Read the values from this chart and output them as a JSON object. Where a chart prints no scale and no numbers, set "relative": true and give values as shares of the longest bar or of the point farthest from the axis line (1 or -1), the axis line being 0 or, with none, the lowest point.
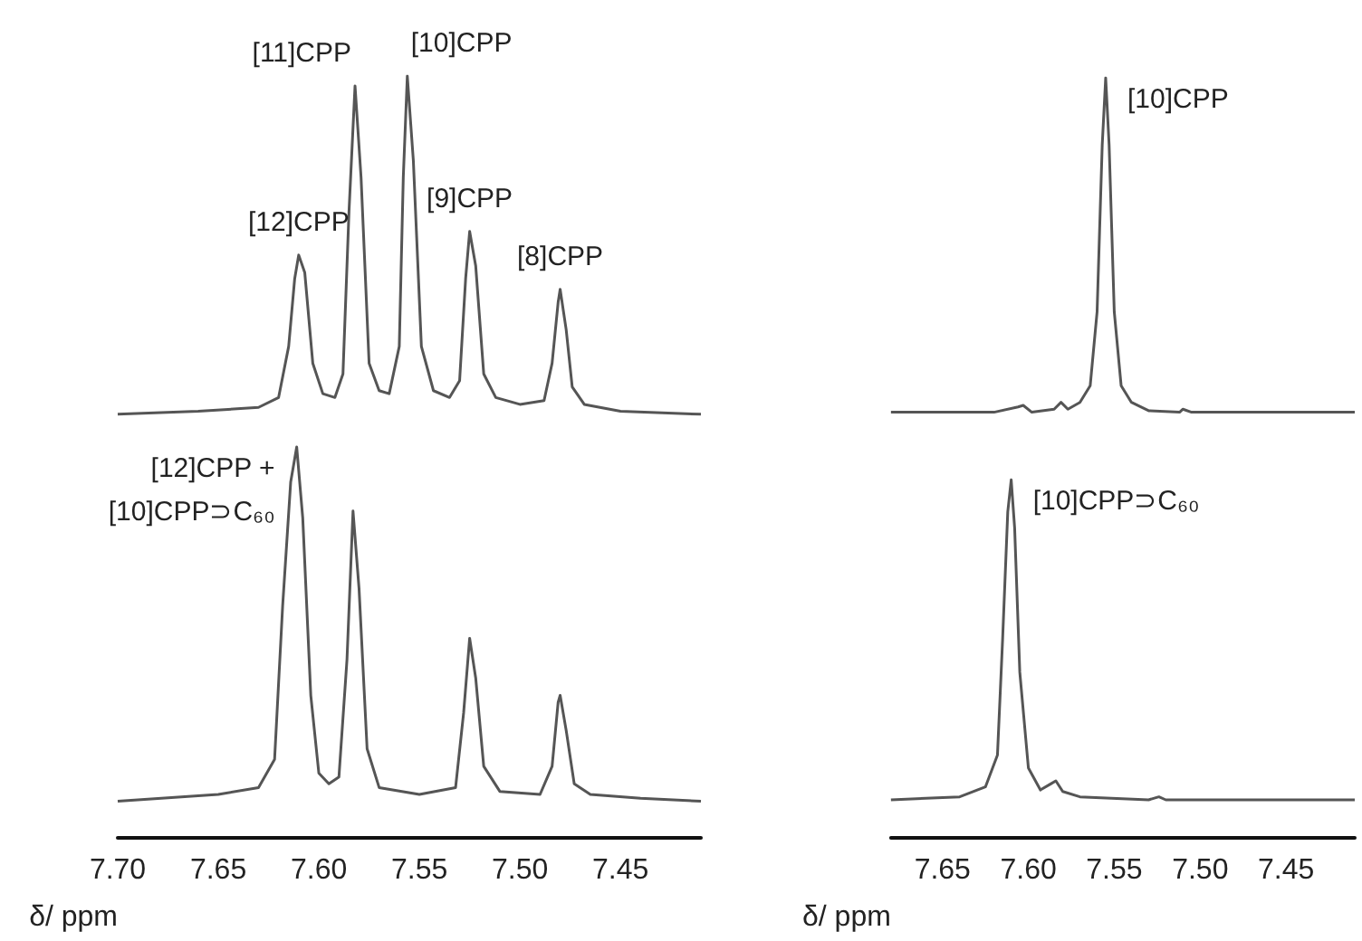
{
  "chart_data": [
    {
      "type": "line",
      "relative": true,
      "xlim": [
        7.7,
        7.41
      ],
      "xlabel": "δ/ ppm",
      "xticks": [
        {
          "value": 7.7,
          "label": "7.70"
        },
        7.65,
        {
          "value": 7.6,
          "label": "7.60"
        },
        7.55,
        {
          "value": 7.5,
          "label": "7.50"
        },
        7.45
      ],
      "series": [
        {
          "color": "#555555",
          "x": [
            7.7,
            7.66,
            7.63,
            7.62,
            7.615,
            7.612,
            7.61,
            7.607,
            7.603,
            7.598,
            7.592,
            7.588,
            7.585,
            7.582,
            7.579,
            7.575,
            7.57,
            7.565,
            7.56,
            7.558,
            7.556,
            7.553,
            7.549,
            7.543,
            7.535,
            7.53,
            7.527,
            7.525,
            7.522,
            7.518,
            7.512,
            7.5,
            7.488,
            7.484,
            7.481,
            7.48,
            7.477,
            7.474,
            7.468,
            7.45,
            7.41
          ],
          "values": [
            0.556,
            0.56,
            0.565,
            0.578,
            0.645,
            0.734,
            0.765,
            0.742,
            0.623,
            0.583,
            0.578,
            0.609,
            0.822,
            0.987,
            0.867,
            0.623,
            0.587,
            0.583,
            0.645,
            0.867,
            1.0,
            0.889,
            0.645,
            0.587,
            0.578,
            0.6,
            0.734,
            0.796,
            0.751,
            0.609,
            0.578,
            0.569,
            0.574,
            0.623,
            0.703,
            0.72,
            0.667,
            0.592,
            0.569,
            0.56,
            0.556
          ]
        },
        {
          "color": "#555555",
          "x": [
            7.7,
            7.65,
            7.63,
            7.622,
            7.618,
            7.614,
            7.611,
            7.608,
            7.604,
            7.6,
            7.595,
            7.59,
            7.586,
            7.583,
            7.58,
            7.576,
            7.57,
            7.55,
            7.532,
            7.528,
            7.525,
            7.522,
            7.518,
            7.51,
            7.49,
            7.484,
            7.481,
            7.48,
            7.477,
            7.473,
            7.465,
            7.44,
            7.41
          ],
          "values": [
            0.048,
            0.057,
            0.066,
            0.103,
            0.304,
            0.467,
            0.513,
            0.42,
            0.187,
            0.085,
            0.071,
            0.08,
            0.234,
            0.429,
            0.327,
            0.117,
            0.066,
            0.057,
            0.066,
            0.164,
            0.262,
            0.21,
            0.094,
            0.061,
            0.057,
            0.094,
            0.178,
            0.187,
            0.141,
            0.071,
            0.057,
            0.052,
            0.048
          ]
        }
      ],
      "annotations": [
        {
          "text": "[12]CPP",
          "x": 7.61,
          "y": 0.765
        },
        {
          "text": "[11]CPP",
          "x": 7.582,
          "y": 0.987
        },
        {
          "text": "[10]CPP",
          "x": 7.556,
          "y": 1.0
        },
        {
          "text": "[9]CPP",
          "x": 7.525,
          "y": 0.796
        },
        {
          "text": "[8]CPP",
          "x": 7.48,
          "y": 0.72
        },
        {
          "text": "[12]CPP +\n[10]CPP⊃C₆₀",
          "x": 7.611,
          "y": 0.513
        }
      ]
    },
    {
      "type": "line",
      "relative": true,
      "xlim": [
        7.68,
        7.41
      ],
      "xlabel": "δ/ ppm",
      "xticks": [
        7.65,
        {
          "value": 7.6,
          "label": "7.60"
        },
        7.55,
        {
          "value": 7.5,
          "label": "7.50"
        },
        7.45
      ],
      "series": [
        {
          "color": "#555555",
          "x": [
            7.68,
            7.62,
            7.606,
            7.603,
            7.598,
            7.585,
            7.581,
            7.577,
            7.57,
            7.564,
            7.56,
            7.557,
            7.555,
            7.553,
            7.55,
            7.546,
            7.54,
            7.53,
            7.512,
            7.51,
            7.505,
            7.41
          ],
          "values": [
            0.56,
            0.56,
            0.567,
            0.569,
            0.56,
            0.564,
            0.573,
            0.564,
            0.573,
            0.595,
            0.692,
            0.912,
            1.0,
            0.912,
            0.692,
            0.595,
            0.573,
            0.562,
            0.56,
            0.564,
            0.56,
            0.56
          ]
        },
        {
          "color": "#555555",
          "x": [
            7.68,
            7.64,
            7.625,
            7.618,
            7.615,
            7.612,
            7.61,
            7.608,
            7.605,
            7.6,
            7.593,
            7.587,
            7.584,
            7.58,
            7.57,
            7.53,
            7.524,
            7.52,
            7.41
          ],
          "values": [
            0.05,
            0.054,
            0.067,
            0.109,
            0.261,
            0.429,
            0.471,
            0.408,
            0.218,
            0.092,
            0.063,
            0.071,
            0.075,
            0.061,
            0.054,
            0.05,
            0.054,
            0.05,
            0.05
          ]
        }
      ],
      "annotations": [
        {
          "text": "[10]CPP",
          "x": 7.555,
          "y": 1.0
        },
        {
          "text": "[10]CPP⊃C₆₀",
          "x": 7.61,
          "y": 0.471
        }
      ]
    }
  ]
}
